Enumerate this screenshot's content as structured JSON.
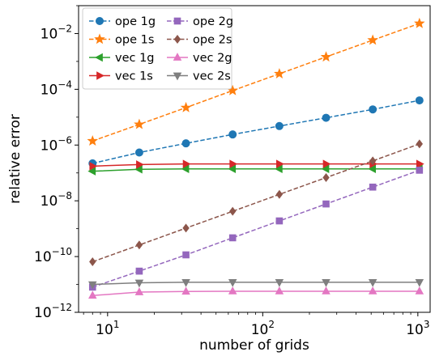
{
  "chart_data": {
    "type": "line",
    "xlabel": "number of grids",
    "ylabel": "relative error",
    "xscale": "log",
    "yscale": "log",
    "xlim": [
      6.5,
      1200
    ],
    "ylim": [
      1e-12,
      0.1
    ],
    "x_ticks": [
      {
        "value": 10,
        "base": "10",
        "exp": "1"
      },
      {
        "value": 100,
        "base": "10",
        "exp": "2"
      },
      {
        "value": 1000,
        "base": "10",
        "exp": "3"
      }
    ],
    "y_ticks": [
      {
        "value": 1e-12,
        "base": "10",
        "exp": "−12"
      },
      {
        "value": 1e-10,
        "base": "10",
        "exp": "−10"
      },
      {
        "value": 1e-08,
        "base": "10",
        "exp": "−8"
      },
      {
        "value": 1e-06,
        "base": "10",
        "exp": "−6"
      },
      {
        "value": 0.0001,
        "base": "10",
        "exp": "−4"
      },
      {
        "value": 0.01,
        "base": "10",
        "exp": "−2"
      }
    ],
    "grid": false,
    "legend": {
      "placement": "top-left",
      "columns": 2
    },
    "x": [
      8,
      16,
      32,
      64,
      128,
      256,
      512,
      1024
    ],
    "series": [
      {
        "name": "ope 1g",
        "color": "#1f77b4",
        "marker": "circle",
        "dashed": true,
        "values": [
          2.2e-07,
          5.4e-07,
          1.15e-06,
          2.4e-06,
          4.8e-06,
          9.5e-06,
          1.9e-05,
          4e-05
        ]
      },
      {
        "name": "ope 1s",
        "color": "#ff7f0e",
        "marker": "star",
        "dashed": true,
        "values": [
          1.4e-06,
          5.5e-06,
          2.2e-05,
          9e-05,
          0.00036,
          0.00145,
          0.0058,
          0.023
        ]
      },
      {
        "name": "vec 1g",
        "color": "#2ca02c",
        "marker": "triangle-left",
        "dashed": false,
        "values": [
          1.15e-07,
          1.35e-07,
          1.4e-07,
          1.4e-07,
          1.4e-07,
          1.4e-07,
          1.4e-07,
          1.4e-07
        ]
      },
      {
        "name": "vec 1s",
        "color": "#d62728",
        "marker": "triangle-right",
        "dashed": false,
        "values": [
          1.75e-07,
          2e-07,
          2.1e-07,
          2.1e-07,
          2.1e-07,
          2.1e-07,
          2.1e-07,
          2.1e-07
        ]
      },
      {
        "name": "ope 2g",
        "color": "#9467bd",
        "marker": "square",
        "dashed": true,
        "values": [
          8e-12,
          3e-11,
          1.15e-10,
          4.7e-10,
          1.9e-09,
          7.7e-09,
          3.1e-08,
          1.25e-07
        ]
      },
      {
        "name": "ope 2s",
        "color": "#8c564b",
        "marker": "diamond",
        "dashed": true,
        "values": [
          6.5e-11,
          2.6e-10,
          1.05e-09,
          4.2e-09,
          1.7e-08,
          6.8e-08,
          2.7e-07,
          1.1e-06
        ]
      },
      {
        "name": "vec 2g",
        "color": "#e377c2",
        "marker": "triangle-up",
        "dashed": false,
        "values": [
          4e-12,
          5.3e-12,
          5.6e-12,
          5.7e-12,
          5.7e-12,
          5.7e-12,
          5.7e-12,
          5.7e-12
        ]
      },
      {
        "name": "vec 2s",
        "color": "#7f7f7f",
        "marker": "triangle-down",
        "dashed": false,
        "values": [
          1e-11,
          1.15e-11,
          1.2e-11,
          1.2e-11,
          1.2e-11,
          1.2e-11,
          1.2e-11,
          1.2e-11
        ]
      }
    ]
  }
}
